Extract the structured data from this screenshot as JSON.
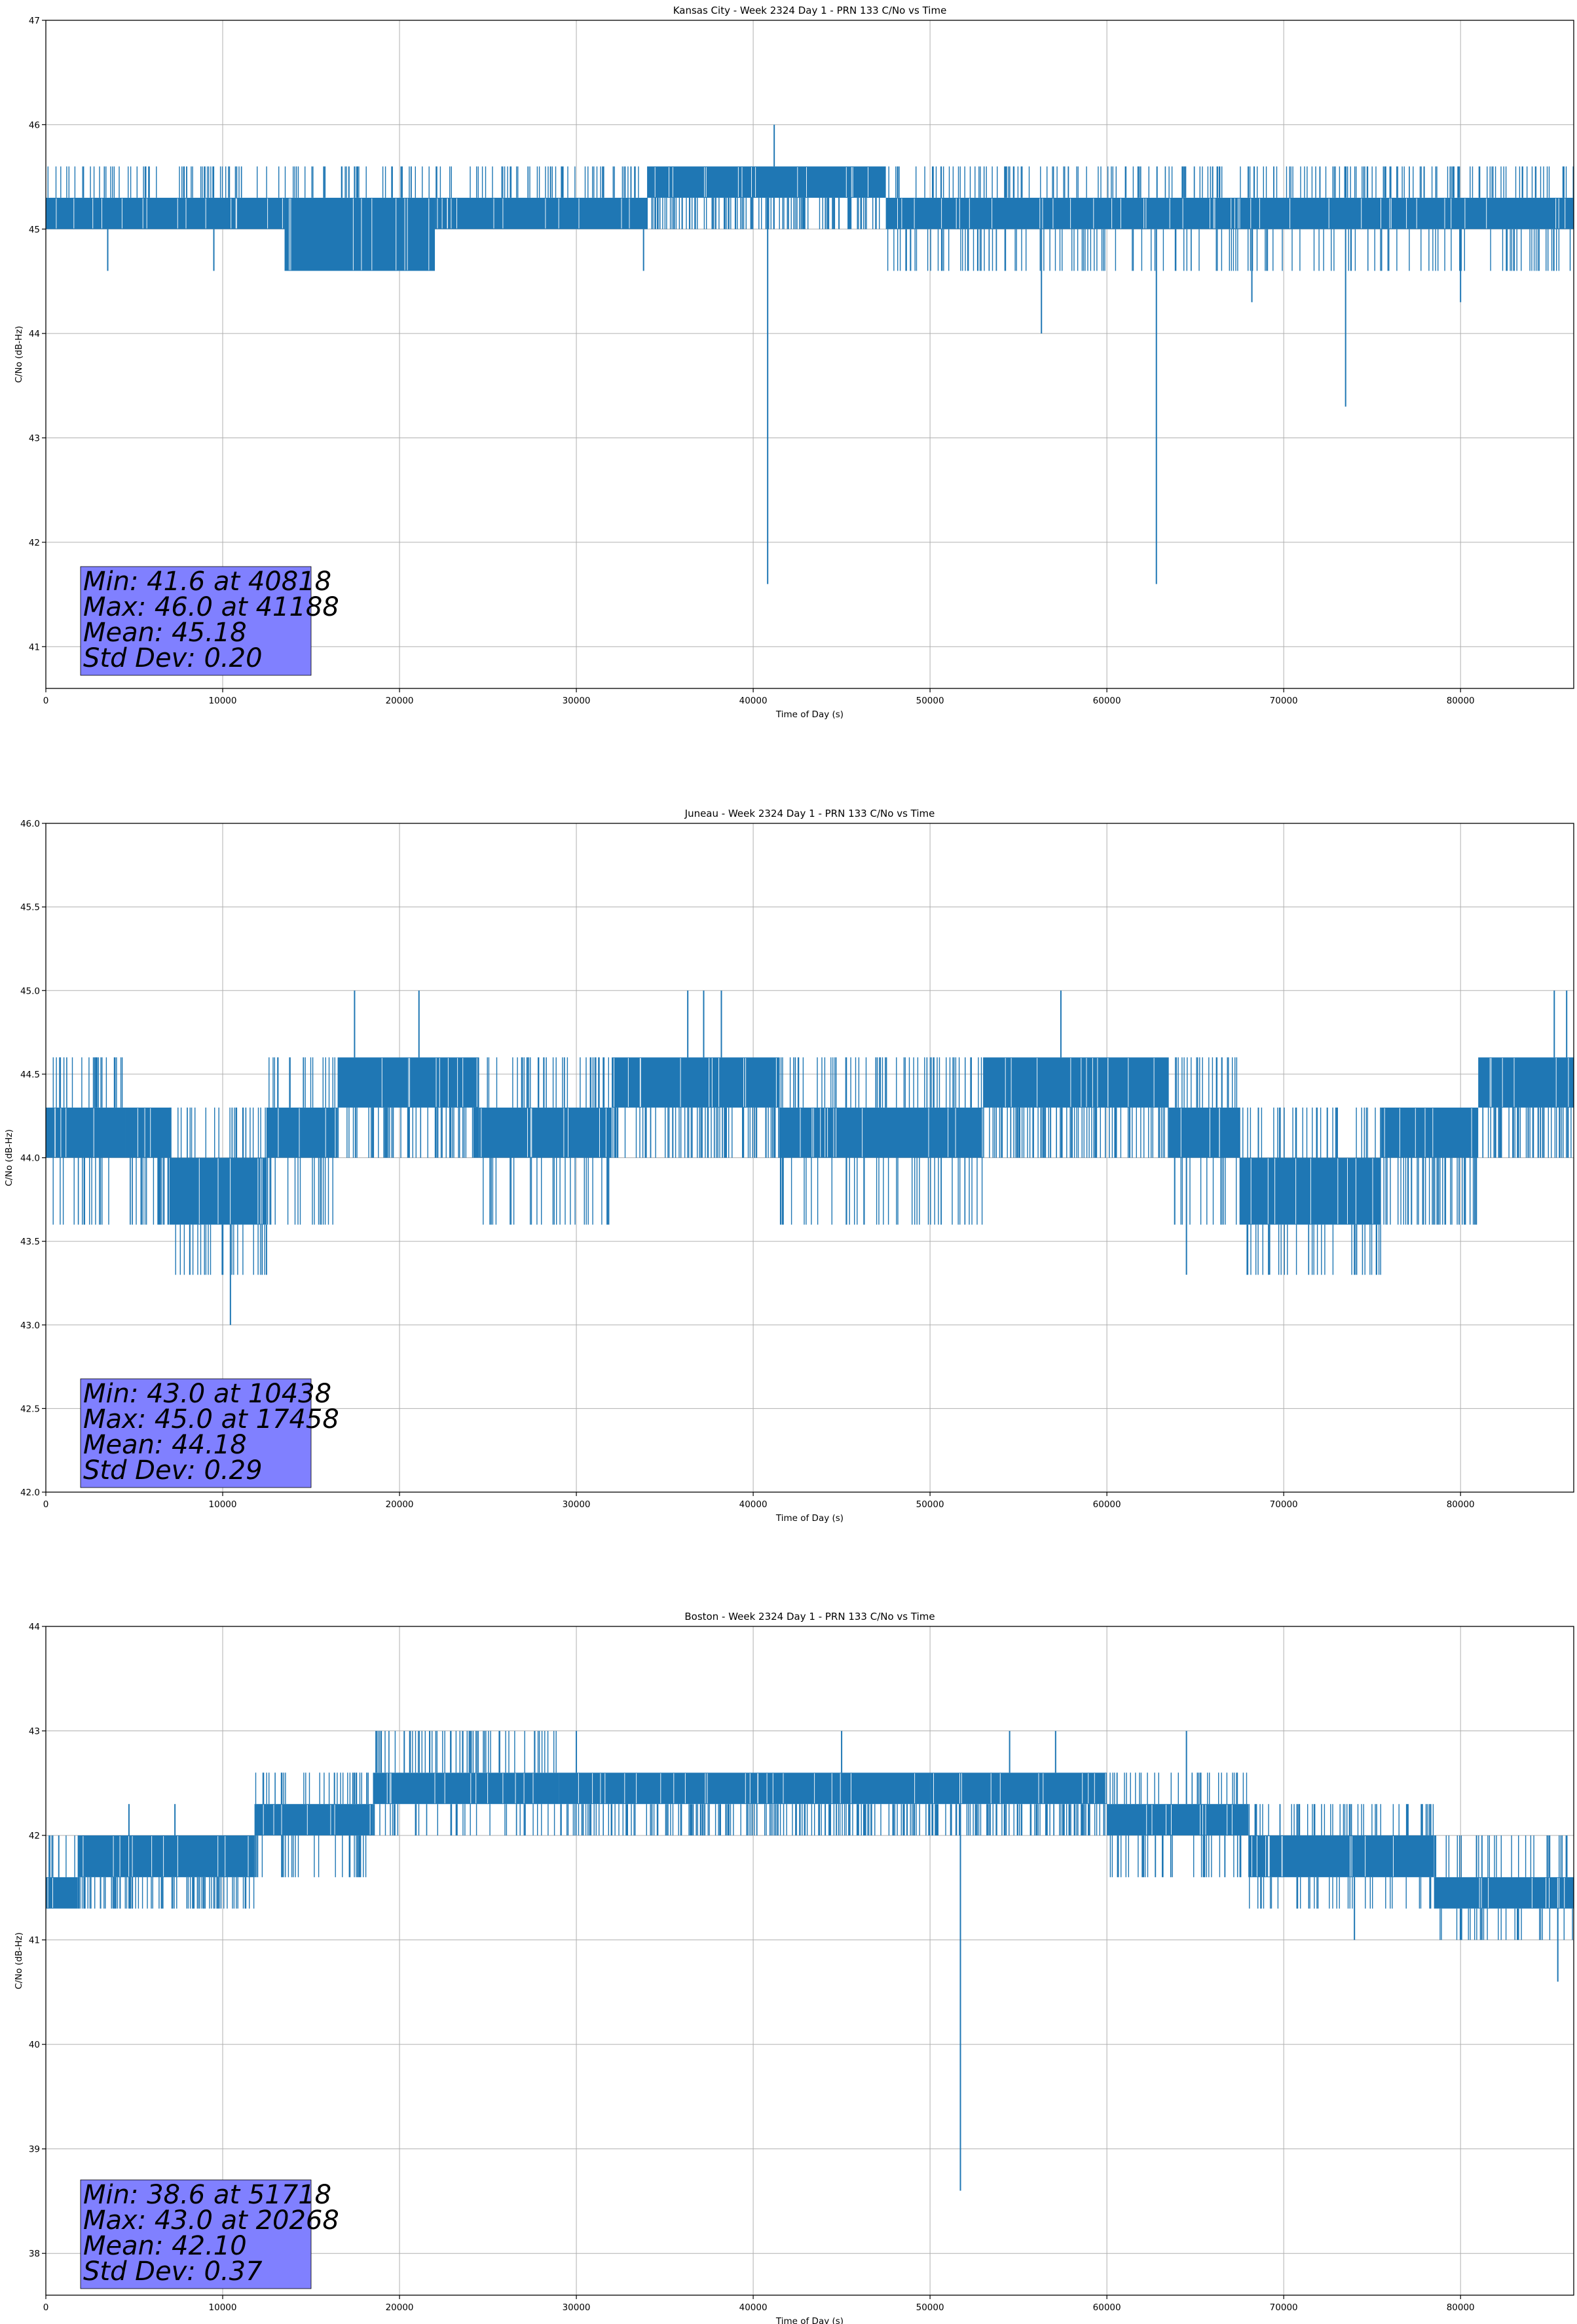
{
  "colors": {
    "series": "#1f77b4",
    "stats_box": "#8080ff",
    "grid": "#b0b0b0"
  },
  "chart_data": [
    {
      "type": "line",
      "title": "Kansas City - Week 2324 Day 1 - PRN 133 C/No vs Time",
      "xlabel": "Time of Day (s)",
      "ylabel": "C/No (dB-Hz)",
      "xlim": [
        0,
        86400
      ],
      "ylim": [
        40.6,
        47
      ],
      "xticks": [
        0,
        10000,
        20000,
        30000,
        40000,
        50000,
        60000,
        70000,
        80000
      ],
      "xtick_labels": [
        "0",
        "10000",
        "20000",
        "30000",
        "40000",
        "50000",
        "60000",
        "70000",
        "80000"
      ],
      "yticks": [
        41,
        42,
        43,
        44,
        45,
        46,
        47
      ],
      "ytick_labels": [
        "41",
        "42",
        "43",
        "44",
        "45",
        "46",
        "47"
      ],
      "grid": true,
      "series": [
        {
          "name": "C/No",
          "segments": [
            {
              "x_start": 0,
              "x_end": 13500,
              "band": [
                45.0,
                45.3
              ],
              "high": 45.6,
              "low": 45.0
            },
            {
              "x_start": 13500,
              "x_end": 22000,
              "band": [
                44.6,
                45.3
              ],
              "high": 45.6,
              "low": 44.6
            },
            {
              "x_start": 22000,
              "x_end": 34000,
              "band": [
                45.0,
                45.3
              ],
              "high": 45.6,
              "low": 45.0
            },
            {
              "x_start": 34000,
              "x_end": 47500,
              "band": [
                45.3,
                45.6
              ],
              "high": 45.6,
              "low": 45.0
            },
            {
              "x_start": 47500,
              "x_end": 86400,
              "band": [
                45.0,
                45.3
              ],
              "high": 45.6,
              "low": 44.6
            }
          ],
          "spikes": [
            {
              "x": 3500,
              "y": 44.6
            },
            {
              "x": 9500,
              "y": 44.6
            },
            {
              "x": 33800,
              "y": 44.6
            },
            {
              "x": 40818,
              "y": 41.6
            },
            {
              "x": 41188,
              "y": 46.0
            },
            {
              "x": 56300,
              "y": 44.0
            },
            {
              "x": 62800,
              "y": 41.6
            },
            {
              "x": 68200,
              "y": 44.3
            },
            {
              "x": 73500,
              "y": 43.3
            },
            {
              "x": 80000,
              "y": 44.3
            }
          ]
        }
      ],
      "stats": {
        "lines": [
          "Min: 41.6 at 40818",
          "Max: 46.0 at 41188",
          "Mean: 45.18",
          "Std Dev: 0.20"
        ]
      }
    },
    {
      "type": "line",
      "title": "Juneau - Week 2324 Day 1 - PRN 133 C/No vs Time",
      "xlabel": "Time of Day (s)",
      "ylabel": "C/No (dB-Hz)",
      "xlim": [
        0,
        86400
      ],
      "ylim": [
        42.0,
        46.0
      ],
      "xticks": [
        0,
        10000,
        20000,
        30000,
        40000,
        50000,
        60000,
        70000,
        80000
      ],
      "xtick_labels": [
        "0",
        "10000",
        "20000",
        "30000",
        "40000",
        "50000",
        "60000",
        "70000",
        "80000"
      ],
      "yticks": [
        42.0,
        42.5,
        43.0,
        43.5,
        44.0,
        44.5,
        45.0,
        45.5,
        46.0
      ],
      "ytick_labels": [
        "42.0",
        "42.5",
        "43.0",
        "43.5",
        "44.0",
        "44.5",
        "45.0",
        "45.5",
        "46.0"
      ],
      "grid": true,
      "series": [
        {
          "name": "C/No",
          "segments": [
            {
              "x_start": 0,
              "x_end": 4500,
              "band": [
                44.0,
                44.3
              ],
              "high": 44.6,
              "low": 43.6
            },
            {
              "x_start": 4500,
              "x_end": 7000,
              "band": [
                44.0,
                44.3
              ],
              "high": 44.3,
              "low": 43.6
            },
            {
              "x_start": 7000,
              "x_end": 12500,
              "band": [
                43.6,
                44.0
              ],
              "high": 44.3,
              "low": 43.3
            },
            {
              "x_start": 12500,
              "x_end": 16500,
              "band": [
                44.0,
                44.3
              ],
              "high": 44.6,
              "low": 43.6
            },
            {
              "x_start": 16500,
              "x_end": 24500,
              "band": [
                44.3,
                44.6
              ],
              "high": 44.6,
              "low": 44.0
            },
            {
              "x_start": 24500,
              "x_end": 32000,
              "band": [
                44.0,
                44.3
              ],
              "high": 44.6,
              "low": 43.6
            },
            {
              "x_start": 32000,
              "x_end": 41500,
              "band": [
                44.3,
                44.6
              ],
              "high": 44.6,
              "low": 44.0
            },
            {
              "x_start": 41500,
              "x_end": 53000,
              "band": [
                44.0,
                44.3
              ],
              "high": 44.6,
              "low": 43.6
            },
            {
              "x_start": 53000,
              "x_end": 63500,
              "band": [
                44.3,
                44.6
              ],
              "high": 44.6,
              "low": 44.0
            },
            {
              "x_start": 63500,
              "x_end": 67500,
              "band": [
                44.0,
                44.3
              ],
              "high": 44.6,
              "low": 43.6
            },
            {
              "x_start": 67500,
              "x_end": 75500,
              "band": [
                43.6,
                44.0
              ],
              "high": 44.3,
              "low": 43.3
            },
            {
              "x_start": 75500,
              "x_end": 81000,
              "band": [
                44.0,
                44.3
              ],
              "high": 44.3,
              "low": 43.6
            },
            {
              "x_start": 81000,
              "x_end": 86400,
              "band": [
                44.3,
                44.6
              ],
              "high": 44.6,
              "low": 44.0
            }
          ],
          "spikes": [
            {
              "x": 10438,
              "y": 43.0
            },
            {
              "x": 17458,
              "y": 45.0
            },
            {
              "x": 21100,
              "y": 45.0
            },
            {
              "x": 36300,
              "y": 45.0
            },
            {
              "x": 37200,
              "y": 45.0
            },
            {
              "x": 38200,
              "y": 45.0
            },
            {
              "x": 57400,
              "y": 45.0
            },
            {
              "x": 64500,
              "y": 43.3
            },
            {
              "x": 69200,
              "y": 43.3
            },
            {
              "x": 85300,
              "y": 45.0
            },
            {
              "x": 86000,
              "y": 45.0
            }
          ]
        }
      ],
      "stats": {
        "lines": [
          "Min: 43.0 at 10438",
          "Max: 45.0 at 17458",
          "Mean: 44.18",
          "Std Dev: 0.29"
        ]
      }
    },
    {
      "type": "line",
      "title": "Boston - Week 2324 Day 1 - PRN 133 C/No vs Time",
      "xlabel": "Time of Day (s)",
      "ylabel": "C/No (dB-Hz)",
      "xlim": [
        0,
        86400
      ],
      "ylim": [
        37.6,
        44
      ],
      "xticks": [
        0,
        10000,
        20000,
        30000,
        40000,
        50000,
        60000,
        70000,
        80000
      ],
      "xtick_labels": [
        "0",
        "10000",
        "20000",
        "30000",
        "40000",
        "50000",
        "60000",
        "70000",
        "80000"
      ],
      "yticks": [
        38,
        39,
        40,
        41,
        42,
        43,
        44
      ],
      "ytick_labels": [
        "38",
        "39",
        "40",
        "41",
        "42",
        "43",
        "44"
      ],
      "grid": true,
      "series": [
        {
          "name": "C/No",
          "segments": [
            {
              "x_start": 0,
              "x_end": 1800,
              "band": [
                41.3,
                41.6
              ],
              "high": 42.0,
              "low": 41.3
            },
            {
              "x_start": 1800,
              "x_end": 11800,
              "band": [
                41.6,
                42.0
              ],
              "high": 42.0,
              "low": 41.3
            },
            {
              "x_start": 11800,
              "x_end": 18500,
              "band": [
                42.0,
                42.3
              ],
              "high": 42.6,
              "low": 41.6
            },
            {
              "x_start": 18500,
              "x_end": 29000,
              "band": [
                42.3,
                42.6
              ],
              "high": 43.0,
              "low": 42.0
            },
            {
              "x_start": 29000,
              "x_end": 50000,
              "band": [
                42.3,
                42.6
              ],
              "high": 42.6,
              "low": 42.0
            },
            {
              "x_start": 50000,
              "x_end": 60000,
              "band": [
                42.3,
                42.6
              ],
              "high": 42.6,
              "low": 42.0
            },
            {
              "x_start": 60000,
              "x_end": 68000,
              "band": [
                42.0,
                42.3
              ],
              "high": 42.6,
              "low": 41.6
            },
            {
              "x_start": 68000,
              "x_end": 78500,
              "band": [
                41.6,
                42.0
              ],
              "high": 42.3,
              "low": 41.3
            },
            {
              "x_start": 78500,
              "x_end": 86400,
              "band": [
                41.3,
                41.6
              ],
              "high": 42.0,
              "low": 41.0
            }
          ],
          "spikes": [
            {
              "x": 4700,
              "y": 42.3
            },
            {
              "x": 7300,
              "y": 42.3
            },
            {
              "x": 20268,
              "y": 43.0
            },
            {
              "x": 24000,
              "y": 43.0
            },
            {
              "x": 30000,
              "y": 43.0
            },
            {
              "x": 45000,
              "y": 43.0
            },
            {
              "x": 51718,
              "y": 38.6
            },
            {
              "x": 54500,
              "y": 43.0
            },
            {
              "x": 57100,
              "y": 43.0
            },
            {
              "x": 64500,
              "y": 43.0
            },
            {
              "x": 74000,
              "y": 41.0
            },
            {
              "x": 85500,
              "y": 40.6
            }
          ]
        }
      ],
      "stats": {
        "lines": [
          "Min: 38.6 at 51718",
          "Max: 43.0 at 20268",
          "Mean: 42.10",
          "Std Dev: 0.37"
        ]
      }
    }
  ]
}
